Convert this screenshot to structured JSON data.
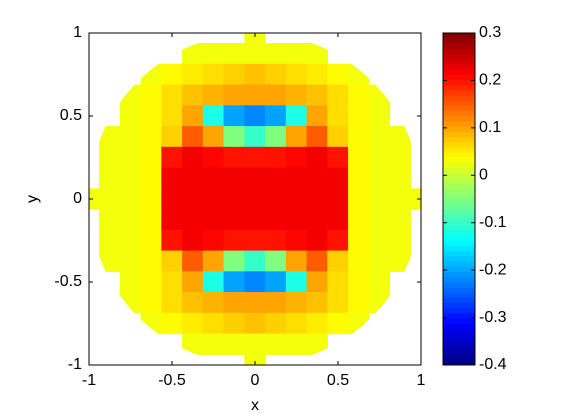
{
  "chart_data": {
    "type": "heatmap",
    "xlabel": "x",
    "ylabel": "y",
    "colormap": "jet",
    "x": [
      -1,
      -0.875,
      -0.75,
      -0.625,
      -0.5,
      -0.375,
      -0.25,
      -0.125,
      0,
      0.125,
      0.25,
      0.375,
      0.5,
      0.625,
      0.75,
      0.875,
      1
    ],
    "y": [
      1,
      0.875,
      0.75,
      0.625,
      0.5,
      0.375,
      0.25,
      0.125,
      0,
      -0.125,
      -0.25,
      -0.375,
      -0.5,
      -0.625,
      -0.75,
      -0.875,
      -1
    ],
    "z": [
      [
        null,
        null,
        null,
        null,
        null,
        null,
        null,
        null,
        0.03,
        null,
        null,
        null,
        null,
        null,
        null,
        null,
        null
      ],
      [
        null,
        null,
        null,
        null,
        null,
        0.03,
        0.03,
        0.03,
        0.03,
        0.03,
        0.03,
        0.03,
        null,
        null,
        null,
        null,
        null
      ],
      [
        null,
        null,
        null,
        0.03,
        0.04,
        0.05,
        0.06,
        0.07,
        0.08,
        0.07,
        0.06,
        0.05,
        0.04,
        0.03,
        null,
        null,
        null
      ],
      [
        null,
        null,
        0.03,
        0.04,
        0.06,
        0.08,
        0.09,
        0.1,
        0.1,
        0.1,
        0.09,
        0.08,
        0.06,
        0.04,
        0.03,
        null,
        null
      ],
      [
        null,
        null,
        0.03,
        0.04,
        0.06,
        0.1,
        -0.12,
        -0.2,
        -0.22,
        -0.2,
        -0.12,
        0.1,
        0.06,
        0.04,
        0.03,
        null,
        null
      ],
      [
        null,
        0.03,
        0.03,
        0.04,
        0.07,
        0.15,
        0.1,
        -0.05,
        -0.1,
        -0.05,
        0.1,
        0.15,
        0.07,
        0.04,
        0.03,
        0.03,
        null
      ],
      [
        null,
        0.03,
        0.03,
        0.04,
        0.2,
        0.22,
        0.21,
        0.2,
        0.2,
        0.2,
        0.21,
        0.22,
        0.2,
        0.04,
        0.03,
        0.03,
        null
      ],
      [
        null,
        0.03,
        0.03,
        0.04,
        0.22,
        0.22,
        0.22,
        0.22,
        0.22,
        0.22,
        0.22,
        0.22,
        0.22,
        0.04,
        0.03,
        0.03,
        null
      ],
      [
        0.03,
        0.03,
        0.03,
        0.04,
        0.22,
        0.22,
        0.22,
        0.22,
        0.22,
        0.22,
        0.22,
        0.22,
        0.22,
        0.04,
        0.03,
        0.03,
        0.03
      ],
      [
        null,
        0.03,
        0.03,
        0.04,
        0.22,
        0.22,
        0.22,
        0.22,
        0.22,
        0.22,
        0.22,
        0.22,
        0.22,
        0.04,
        0.03,
        0.03,
        null
      ],
      [
        null,
        0.03,
        0.03,
        0.04,
        0.2,
        0.22,
        0.21,
        0.2,
        0.2,
        0.2,
        0.21,
        0.22,
        0.2,
        0.04,
        0.03,
        0.03,
        null
      ],
      [
        null,
        0.03,
        0.03,
        0.04,
        0.07,
        0.15,
        0.1,
        -0.05,
        -0.1,
        -0.05,
        0.1,
        0.15,
        0.07,
        0.04,
        0.03,
        0.03,
        null
      ],
      [
        null,
        null,
        0.03,
        0.04,
        0.06,
        0.1,
        -0.12,
        -0.2,
        -0.22,
        -0.2,
        -0.12,
        0.1,
        0.06,
        0.04,
        0.03,
        null,
        null
      ],
      [
        null,
        null,
        0.03,
        0.04,
        0.06,
        0.08,
        0.09,
        0.1,
        0.1,
        0.1,
        0.09,
        0.08,
        0.06,
        0.04,
        0.03,
        null,
        null
      ],
      [
        null,
        null,
        null,
        0.03,
        0.04,
        0.05,
        0.06,
        0.07,
        0.08,
        0.07,
        0.06,
        0.05,
        0.04,
        0.03,
        null,
        null,
        null
      ],
      [
        null,
        null,
        null,
        null,
        null,
        0.03,
        0.03,
        0.03,
        0.03,
        0.03,
        0.03,
        0.03,
        null,
        null,
        null,
        null,
        null
      ],
      [
        null,
        null,
        null,
        null,
        null,
        null,
        null,
        null,
        0.03,
        null,
        null,
        null,
        null,
        null,
        null,
        null,
        null
      ]
    ],
    "xlim": [
      -1,
      1
    ],
    "ylim": [
      -1,
      1
    ],
    "xticks": [
      -1,
      -0.5,
      0,
      0.5,
      1
    ],
    "yticks": [
      -1,
      -0.5,
      0,
      0.5,
      1
    ],
    "clim": [
      -0.4,
      0.3
    ],
    "cticks": [
      -0.4,
      -0.3,
      -0.2,
      -0.1,
      0,
      0.1,
      0.2,
      0.3
    ]
  }
}
